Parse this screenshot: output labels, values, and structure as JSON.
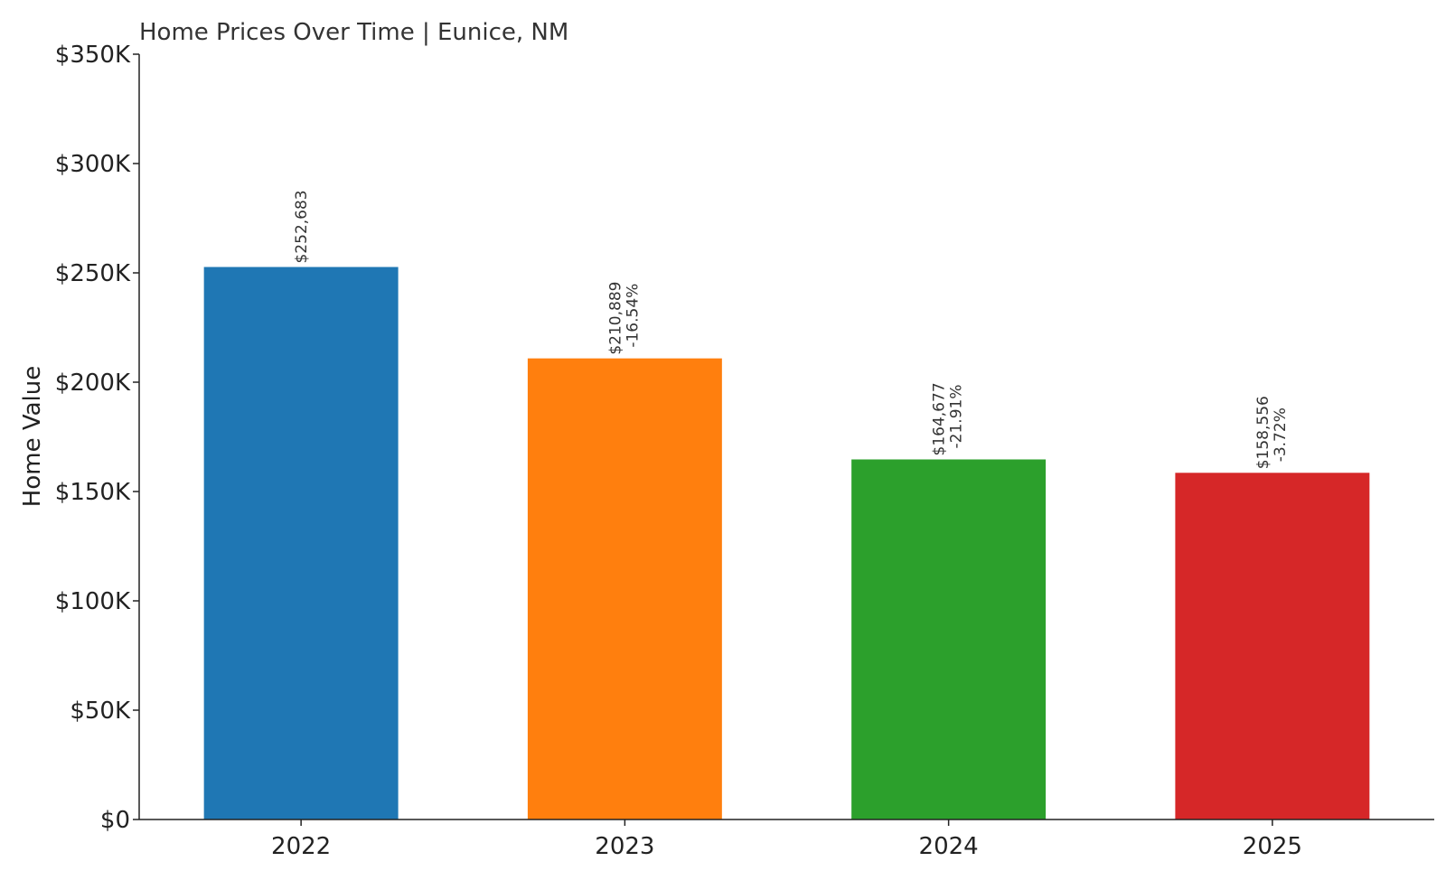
{
  "chart_data": {
    "type": "bar",
    "title": "Home Prices Over Time | Eunice, NM",
    "xlabel": "",
    "ylabel": "Home Value",
    "categories": [
      "2022",
      "2023",
      "2024",
      "2025"
    ],
    "values": [
      252683,
      210889,
      164677,
      158556
    ],
    "value_labels": [
      "$252,683",
      "$210,889",
      "$164,677",
      "$158,556"
    ],
    "change_labels": [
      "",
      "-16.54%",
      "-21.91%",
      "-3.72%"
    ],
    "colors": [
      "#1f77b4",
      "#ff7f0e",
      "#2ca02c",
      "#d62728"
    ],
    "ylim": [
      0,
      350000
    ],
    "yticks": [
      0,
      50000,
      100000,
      150000,
      200000,
      250000,
      300000,
      350000
    ],
    "ytick_labels": [
      "$0",
      "$50K",
      "$100K",
      "$150K",
      "$200K",
      "$250K",
      "$300K",
      "$350K"
    ],
    "grid": false,
    "legend": "none"
  }
}
